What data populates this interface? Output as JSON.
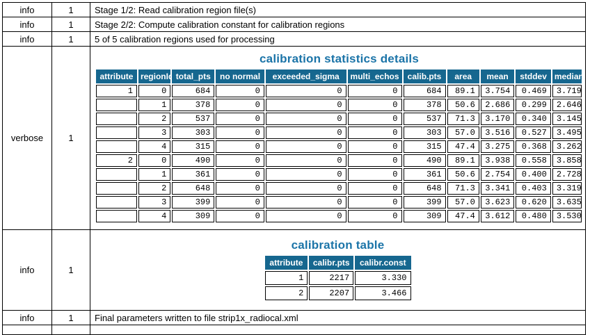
{
  "colors": {
    "header_bg": "#16678F",
    "title_color": "#1B74A8",
    "border": "#000000"
  },
  "log_rows": [
    {
      "level": "info",
      "count": "1",
      "message": "Stage 1/2: Read calibration region file(s)"
    },
    {
      "level": "info",
      "count": "1",
      "message": "Stage 2/2: Compute calibration constant for calibration regions"
    },
    {
      "level": "info",
      "count": "1",
      "message": "5 of 5 calibration regions used for processing"
    },
    {
      "level": "verbose",
      "count": "1",
      "message": "calibration statistics details table"
    },
    {
      "level": "info",
      "count": "1",
      "message": "calibration table"
    },
    {
      "level": "info",
      "count": "1",
      "message": "Final parameters written to file strip1x_radiocal.xml"
    }
  ],
  "stats_table": {
    "title": "calibration statistics details",
    "headers": [
      "attribute",
      "regionId",
      "total_pts",
      "no normal",
      "exceeded_sigma",
      "multi_echos",
      "calib.pts",
      "area",
      "mean",
      "stddev",
      "median"
    ],
    "rows": [
      [
        "1",
        "0",
        "684",
        "0",
        "0",
        "0",
        "684",
        "89.1",
        "3.754",
        "0.469",
        "3.719"
      ],
      [
        "",
        "1",
        "378",
        "0",
        "0",
        "0",
        "378",
        "50.6",
        "2.686",
        "0.299",
        "2.646"
      ],
      [
        "",
        "2",
        "537",
        "0",
        "0",
        "0",
        "537",
        "71.3",
        "3.170",
        "0.340",
        "3.145"
      ],
      [
        "",
        "3",
        "303",
        "0",
        "0",
        "0",
        "303",
        "57.0",
        "3.516",
        "0.527",
        "3.495"
      ],
      [
        "",
        "4",
        "315",
        "0",
        "0",
        "0",
        "315",
        "47.4",
        "3.275",
        "0.368",
        "3.262"
      ],
      [
        "2",
        "0",
        "490",
        "0",
        "0",
        "0",
        "490",
        "89.1",
        "3.938",
        "0.558",
        "3.858"
      ],
      [
        "",
        "1",
        "361",
        "0",
        "0",
        "0",
        "361",
        "50.6",
        "2.754",
        "0.400",
        "2.728"
      ],
      [
        "",
        "2",
        "648",
        "0",
        "0",
        "0",
        "648",
        "71.3",
        "3.341",
        "0.403",
        "3.319"
      ],
      [
        "",
        "3",
        "399",
        "0",
        "0",
        "0",
        "399",
        "57.0",
        "3.623",
        "0.620",
        "3.635"
      ],
      [
        "",
        "4",
        "309",
        "0",
        "0",
        "0",
        "309",
        "47.4",
        "3.612",
        "0.480",
        "3.530"
      ]
    ]
  },
  "calib_table": {
    "title": "calibration table",
    "headers": [
      "attribute",
      "calibr.pts",
      "calibr.const"
    ],
    "rows": [
      [
        "1",
        "2217",
        "3.330"
      ],
      [
        "2",
        "2207",
        "3.466"
      ]
    ]
  }
}
